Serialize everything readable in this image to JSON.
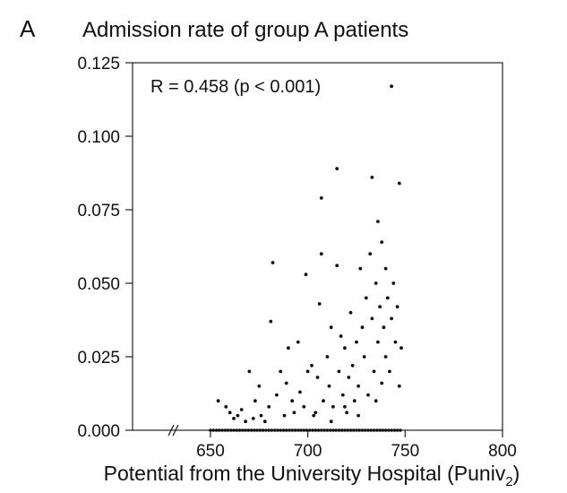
{
  "panel_label": "A",
  "chart_data": {
    "type": "scatter",
    "title": "Admission rate of group A patients",
    "xlabel_main": "Potential from the University Hospital (Puniv",
    "xlabel_sub": "2",
    "xlabel_close": ")",
    "ylabel": "",
    "annotation": "R = 0.458 (p < 0.001)",
    "xlim": [
      610,
      800
    ],
    "ylim": [
      0,
      0.125
    ],
    "x_ticks": [
      "650",
      "700",
      "750",
      "800"
    ],
    "y_ticks": [
      "0.000",
      "0.025",
      "0.050",
      "0.075",
      "0.100",
      "0.125"
    ],
    "axis_break": "//",
    "grid": false,
    "legend": "none",
    "point_color": "#111111",
    "points": [
      [
        654,
        0.01
      ],
      [
        658,
        0.008
      ],
      [
        660,
        0.006
      ],
      [
        662,
        0.004
      ],
      [
        664,
        0.005
      ],
      [
        666,
        0.007
      ],
      [
        668,
        0.003
      ],
      [
        670,
        0.02
      ],
      [
        672,
        0.004
      ],
      [
        673,
        0.01
      ],
      [
        675,
        0.015
      ],
      [
        676,
        0.005
      ],
      [
        678,
        0.003
      ],
      [
        680,
        0.008
      ],
      [
        681,
        0.037
      ],
      [
        682,
        0.057
      ],
      [
        684,
        0.012
      ],
      [
        686,
        0.02
      ],
      [
        688,
        0.005
      ],
      [
        689,
        0.016
      ],
      [
        690,
        0.028
      ],
      [
        692,
        0.01
      ],
      [
        693,
        0.006
      ],
      [
        695,
        0.03
      ],
      [
        696,
        0.013
      ],
      [
        698,
        0.008
      ],
      [
        699,
        0.053
      ],
      [
        700,
        0.02
      ],
      [
        702,
        0.022
      ],
      [
        703,
        0.005
      ],
      [
        705,
        0.018
      ],
      [
        706,
        0.043
      ],
      [
        707,
        0.079
      ],
      [
        707,
        0.06
      ],
      [
        708,
        0.01
      ],
      [
        710,
        0.025
      ],
      [
        711,
        0.015
      ],
      [
        712,
        0.035
      ],
      [
        713,
        0.008
      ],
      [
        715,
        0.089
      ],
      [
        715,
        0.056
      ],
      [
        716,
        0.02
      ],
      [
        717,
        0.032
      ],
      [
        718,
        0.012
      ],
      [
        719,
        0.028
      ],
      [
        720,
        0.006
      ],
      [
        721,
        0.018
      ],
      [
        722,
        0.04
      ],
      [
        723,
        0.022
      ],
      [
        724,
        0.01
      ],
      [
        725,
        0.03
      ],
      [
        726,
        0.015
      ],
      [
        727,
        0.055
      ],
      [
        728,
        0.035
      ],
      [
        729,
        0.025
      ],
      [
        730,
        0.045
      ],
      [
        731,
        0.012
      ],
      [
        732,
        0.06
      ],
      [
        733,
        0.086
      ],
      [
        733,
        0.038
      ],
      [
        734,
        0.02
      ],
      [
        735,
        0.05
      ],
      [
        736,
        0.071
      ],
      [
        736,
        0.03
      ],
      [
        737,
        0.042
      ],
      [
        738,
        0.064
      ],
      [
        738,
        0.016
      ],
      [
        739,
        0.035
      ],
      [
        740,
        0.055
      ],
      [
        740,
        0.025
      ],
      [
        741,
        0.045
      ],
      [
        742,
        0.02
      ],
      [
        743,
        0.038
      ],
      [
        744,
        0.05
      ],
      [
        745,
        0.03
      ],
      [
        746,
        0.042
      ],
      [
        747,
        0.084
      ],
      [
        747,
        0.015
      ],
      [
        748,
        0.028
      ],
      [
        743,
        0.117
      ],
      [
        735,
        0.01
      ],
      [
        726,
        0.005
      ],
      [
        719,
        0.008
      ],
      [
        712,
        0.003
      ],
      [
        704,
        0.006
      ]
    ],
    "zero_band": {
      "x_from": 650,
      "x_to": 748,
      "y": 0.0
    }
  }
}
